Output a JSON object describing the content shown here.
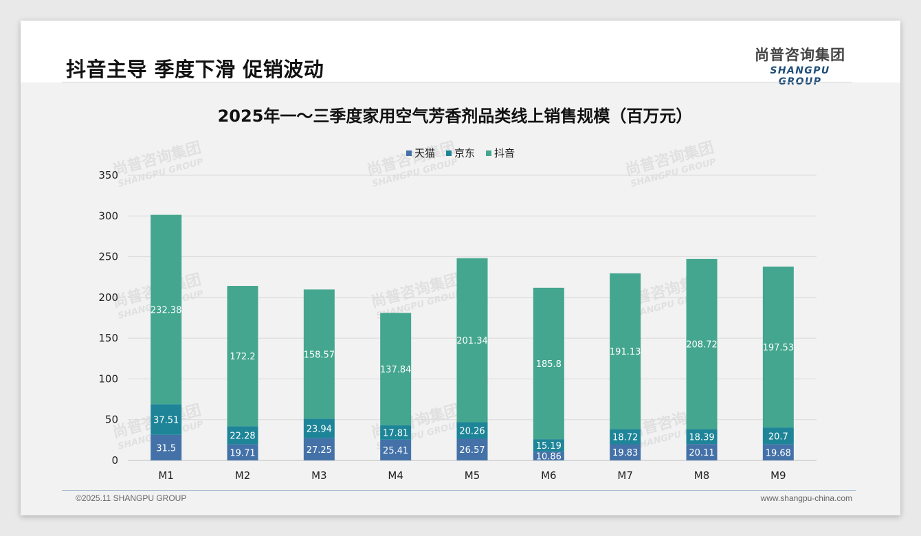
{
  "page": {
    "title": "抖音主导 季度下滑 促销波动",
    "logo_cn": "尚普咨询集团",
    "logo_en": "SHANGPU GROUP",
    "footer_left": "©2025.11 SHANGPU GROUP",
    "footer_right": "www.shangpu-china.com",
    "watermark_cn": "尚普咨询集团",
    "watermark_en": "SHANGPU GROUP"
  },
  "colors": {
    "tmall": "#4472a8",
    "jd": "#1e8598",
    "douyin": "#44a68f",
    "grid": "#d9d9d9"
  },
  "chart_data": {
    "type": "bar",
    "stacked": true,
    "title": "2025年一～三季度家用空气芳香剂品类线上销售规模（百万元）",
    "xlabel": "",
    "ylabel": "",
    "ylim": [
      0,
      350
    ],
    "yticks": [
      0,
      50,
      100,
      150,
      200,
      250,
      300,
      350
    ],
    "grid": true,
    "legend_position": "top-center",
    "categories": [
      "M1",
      "M2",
      "M3",
      "M4",
      "M5",
      "M6",
      "M7",
      "M8",
      "M9"
    ],
    "series": [
      {
        "name": "天猫",
        "color_key": "tmall",
        "values": [
          31.5,
          19.71,
          27.25,
          25.41,
          26.57,
          10.86,
          19.83,
          20.11,
          19.68
        ]
      },
      {
        "name": "京东",
        "color_key": "jd",
        "values": [
          37.51,
          22.28,
          23.94,
          17.81,
          20.26,
          15.19,
          18.72,
          18.39,
          20.7
        ]
      },
      {
        "name": "抖音",
        "color_key": "douyin",
        "values": [
          232.38,
          172.2,
          158.57,
          137.84,
          201.34,
          185.8,
          191.13,
          208.72,
          197.53
        ]
      }
    ]
  }
}
